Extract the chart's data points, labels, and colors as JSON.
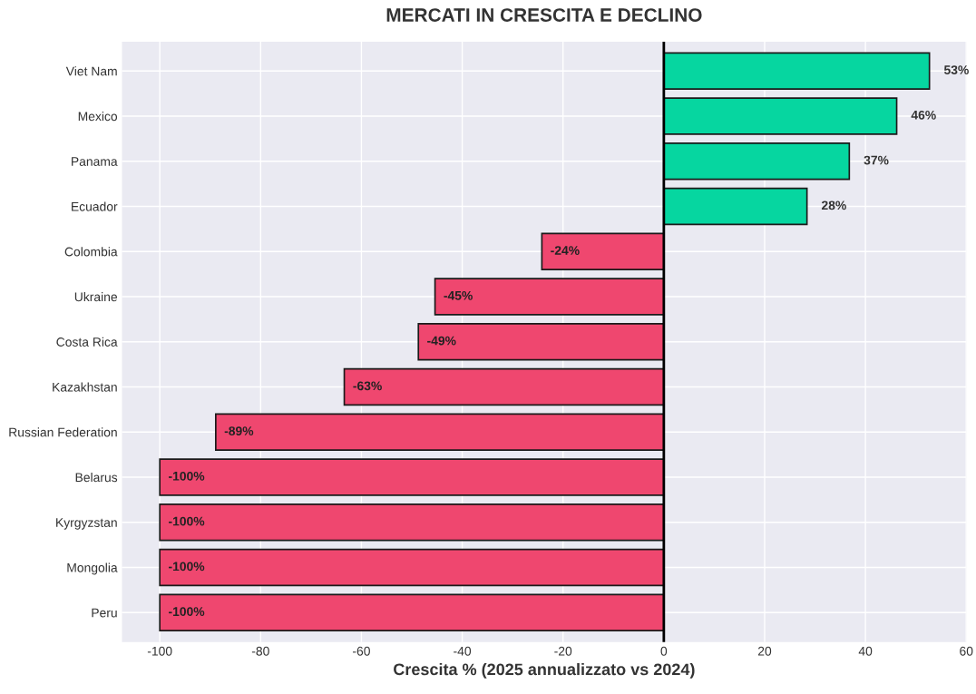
{
  "chart_data": {
    "type": "bar",
    "orientation": "horizontal",
    "title": "MERCATI IN CRESCITA E DECLINO",
    "xlabel": "Crescita % (2025 annualizzato vs 2024)",
    "categories": [
      "Viet Nam",
      "Mexico",
      "Panama",
      "Ecuador",
      "Colombia",
      "Ukraine",
      "Costa Rica",
      "Kazakhstan",
      "Russian Federation",
      "Belarus",
      "Kyrgyzstan",
      "Mongolia",
      "Peru"
    ],
    "values": [
      52.7,
      46.2,
      36.8,
      28.4,
      -24.2,
      -45.4,
      -48.7,
      -63.4,
      -88.9,
      -100,
      -100,
      -100,
      -100
    ],
    "value_labels": [
      "53%",
      "46%",
      "37%",
      "28%",
      "-24%",
      "-45%",
      "-49%",
      "-63%",
      "-89%",
      "-100%",
      "-100%",
      "-100%",
      "-100%"
    ],
    "colors": [
      "#06d6a0",
      "#06d6a0",
      "#06d6a0",
      "#06d6a0",
      "#ef476f",
      "#ef476f",
      "#ef476f",
      "#ef476f",
      "#ef476f",
      "#ef476f",
      "#ef476f",
      "#ef476f",
      "#ef476f"
    ],
    "xlim": [
      -107.5,
      60
    ],
    "xticks": [
      -100,
      -80,
      -60,
      -40,
      -20,
      0,
      20,
      40,
      60
    ],
    "ref_lines": [
      {
        "axis": "x",
        "value": 0,
        "color": "#000000"
      }
    ],
    "grid": true
  }
}
